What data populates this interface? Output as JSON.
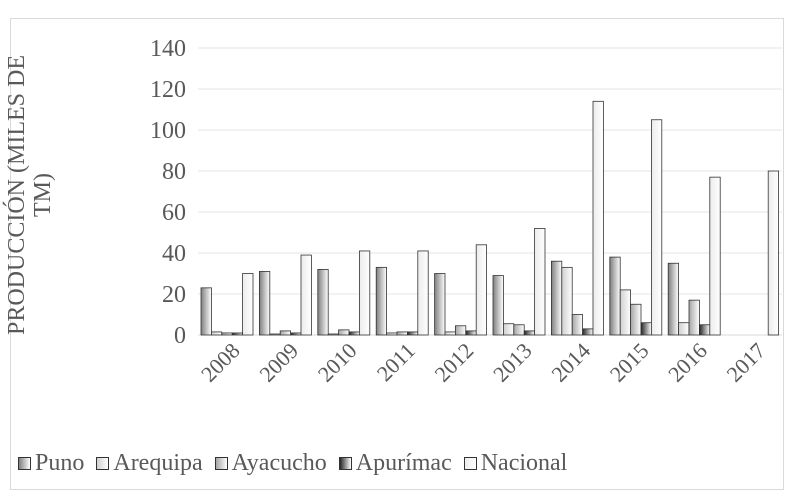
{
  "chart_data": {
    "type": "bar",
    "y_label": "PRODUCCIÓN (MILES DE TM)",
    "categories": [
      "2008",
      "2009",
      "2010",
      "2011",
      "2012",
      "2013",
      "2014",
      "2015",
      "2016",
      "2017"
    ],
    "series": [
      {
        "name": "Puno",
        "color": "#7f7f7f",
        "values": [
          23,
          31,
          32,
          33,
          30,
          29,
          36,
          38,
          35,
          0
        ]
      },
      {
        "name": "Arequipa",
        "color": "#d0d0d0",
        "values": [
          1.5,
          0.5,
          0.5,
          1,
          1.5,
          5.5,
          33,
          22,
          6,
          0
        ]
      },
      {
        "name": "Ayacucho",
        "color": "#a6a6a6",
        "values": [
          1,
          2,
          2.5,
          1.5,
          4.5,
          5,
          10,
          15,
          17,
          0
        ]
      },
      {
        "name": "Apurímac",
        "color": "#262626",
        "values": [
          1,
          1,
          1.5,
          1.5,
          2,
          2,
          3,
          6,
          5,
          0
        ]
      },
      {
        "name": "Nacional",
        "color": "#ececec",
        "values": [
          30,
          39,
          41,
          41,
          44,
          52,
          114,
          105,
          77,
          80
        ]
      }
    ],
    "ylim": [
      0,
      140
    ],
    "yticks": [
      0,
      20,
      40,
      60,
      80,
      100,
      120,
      140
    ],
    "grid": true
  }
}
